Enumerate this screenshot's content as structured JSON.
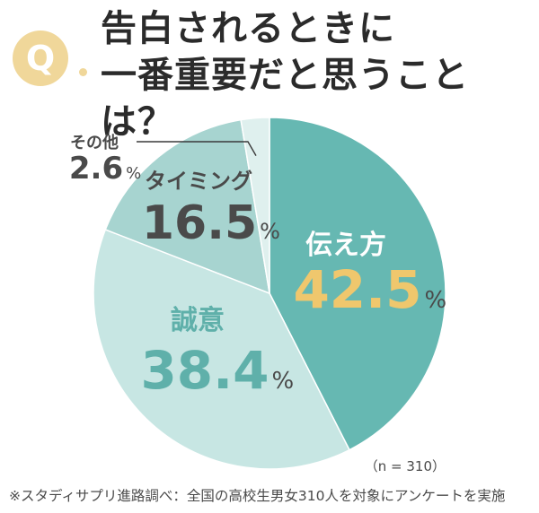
{
  "badge": {
    "letter": "Q"
  },
  "title": {
    "line1": "告白されるときに",
    "line2": "一番重要だと思うことは？"
  },
  "chart_data": {
    "type": "pie",
    "title": "告白されるときに一番重要だと思うことは？",
    "unit": "%",
    "slices": [
      {
        "label": "伝え方",
        "value": 42.5,
        "color": "#66b8b2",
        "label_color": "#ffffff",
        "value_color": "#efc76d"
      },
      {
        "label": "誠意",
        "value": 38.4,
        "color": "#c7e6e3",
        "label_color": "#5fb0aa",
        "value_color": "#5fb0aa"
      },
      {
        "label": "タイミング",
        "value": 16.5,
        "color": "#a7d4d0",
        "label_color": "#4a4a4a",
        "value_color": "#4a4a4a"
      },
      {
        "label": "その他",
        "value": 2.6,
        "color": "#dff0ee",
        "label_color": "#4a4a4a",
        "value_color": "#4a4a4a"
      }
    ]
  },
  "sample_note": "（n = 310）",
  "source": "※スタディサプリ進路調べ：全国の高校生男女310人を対象にアンケートを実施"
}
